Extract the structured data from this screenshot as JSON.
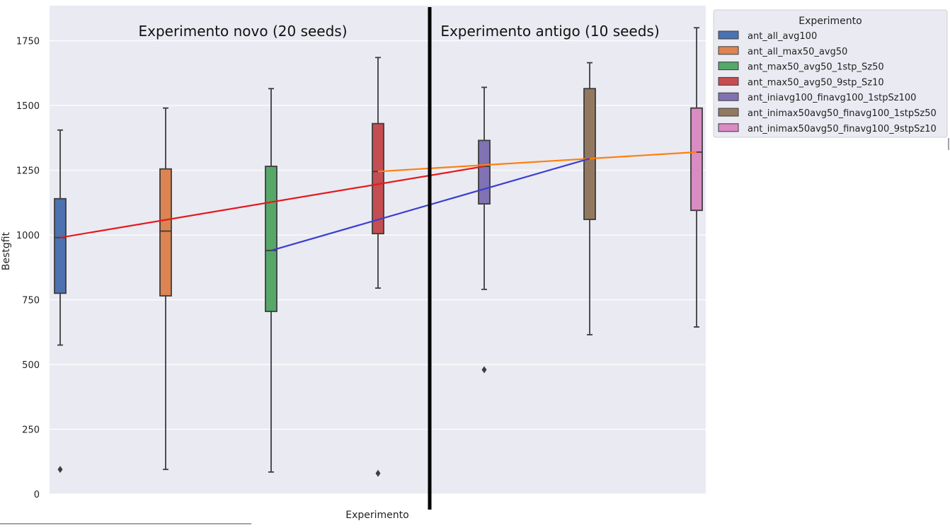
{
  "chart_data": {
    "type": "box",
    "xlabel": "Experimento",
    "ylabel": "Bestgfit",
    "ylim": [
      0,
      1800
    ],
    "yticks": [
      0,
      250,
      500,
      750,
      1000,
      1250,
      1500,
      1750
    ],
    "grid": true,
    "legend": {
      "title": "Experimento",
      "placement": "outside-right-top"
    },
    "annotations": [
      "Experimento novo (20 seeds)",
      "Experimento antigo (10 seeds)"
    ],
    "series": [
      {
        "name": "ant_all_avg100",
        "color": "#4c72b0",
        "whisker_low": 575,
        "q1": 775,
        "median": 990,
        "q3": 1140,
        "whisker_high": 1405,
        "outliers": [
          95
        ]
      },
      {
        "name": "ant_all_max50_avg50",
        "color": "#dd8452",
        "whisker_low": 95,
        "q1": 765,
        "median": 1015,
        "q3": 1255,
        "whisker_high": 1490,
        "outliers": []
      },
      {
        "name": "ant_max50_avg50_1stp_Sz50",
        "color": "#55a868",
        "whisker_low": 85,
        "q1": 705,
        "median": 940,
        "q3": 1265,
        "whisker_high": 1565,
        "outliers": []
      },
      {
        "name": "ant_max50_avg50_9stp_Sz10",
        "color": "#c44e52",
        "whisker_low": 795,
        "q1": 1005,
        "median": 1245,
        "q3": 1430,
        "whisker_high": 1685,
        "outliers": [
          80
        ]
      },
      {
        "name": "ant_iniavg100_finavg100_1stpSz100",
        "color": "#8172b3",
        "whisker_low": 790,
        "q1": 1120,
        "median": 1265,
        "q3": 1365,
        "whisker_high": 1570,
        "outliers": [
          480
        ]
      },
      {
        "name": "ant_inimax50avg50_finavg100_1stpSz50",
        "color": "#937860",
        "whisker_low": 615,
        "q1": 1060,
        "median": 1295,
        "q3": 1565,
        "whisker_high": 1665,
        "outliers": []
      },
      {
        "name": "ant_inimax50avg50_finavg100_9stpSz10",
        "color": "#da8bc3",
        "whisker_low": 645,
        "q1": 1095,
        "median": 1320,
        "q3": 1490,
        "whisker_high": 1800,
        "outliers": []
      }
    ],
    "trend_lines": [
      {
        "color": "#e31a1c",
        "from": [
          1,
          990
        ],
        "to": [
          5,
          1265
        ]
      },
      {
        "color": "#ff7f0e",
        "from": [
          4,
          1245
        ],
        "to": [
          7,
          1320
        ]
      },
      {
        "color": "#3b3fcf",
        "from": [
          3,
          940
        ],
        "to": [
          6,
          1295
        ]
      }
    ]
  }
}
